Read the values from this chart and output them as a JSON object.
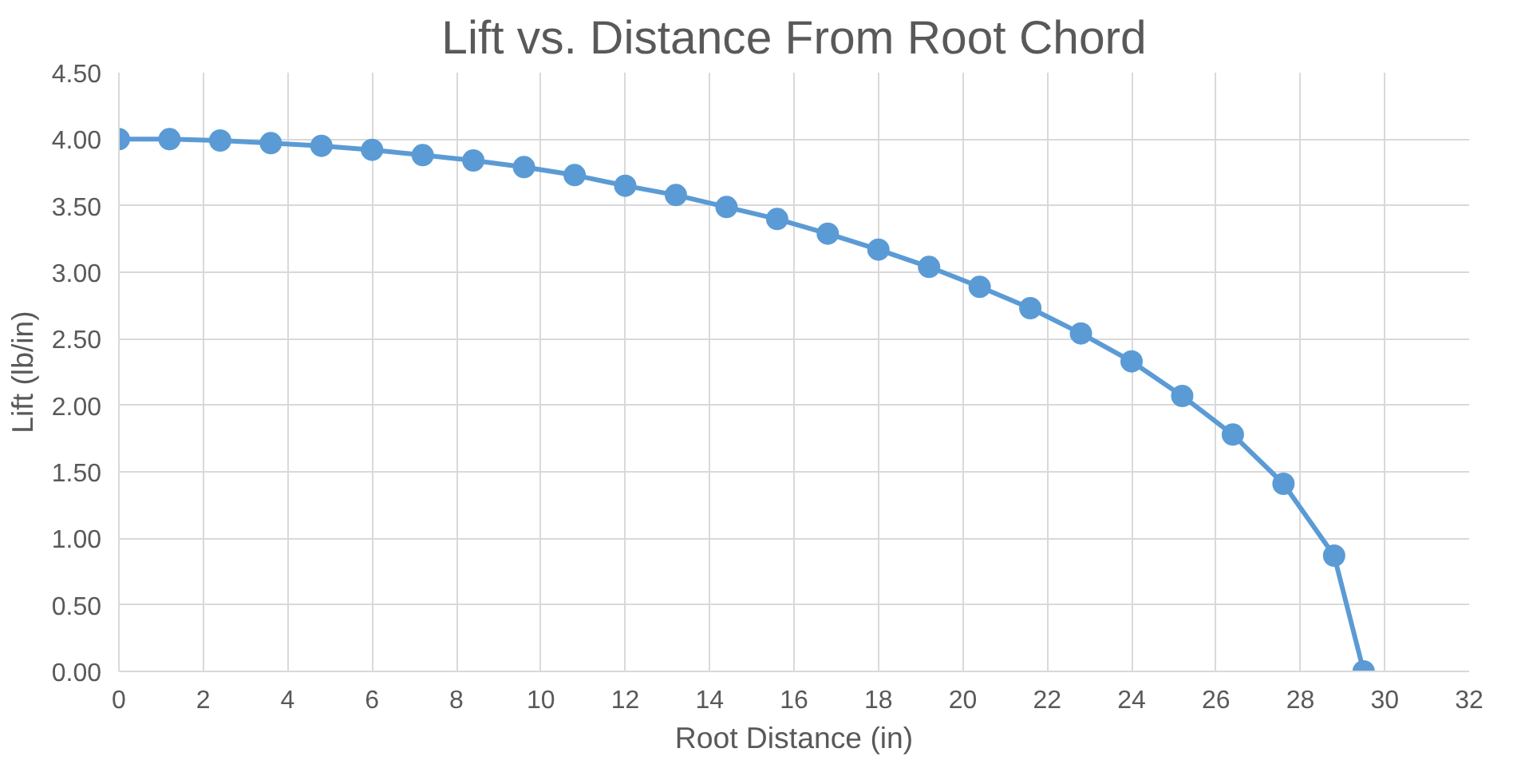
{
  "chart_data": {
    "type": "line",
    "title": "Lift vs. Distance From Root Chord",
    "xlabel": "Root Distance (in)",
    "ylabel": "Lift (lb/in)",
    "x": [
      0,
      1.2,
      2.4,
      3.6,
      4.8,
      6.0,
      7.2,
      8.4,
      9.6,
      10.8,
      12.0,
      13.2,
      14.4,
      15.6,
      16.8,
      18.0,
      19.2,
      20.4,
      21.6,
      22.8,
      24.0,
      25.2,
      26.4,
      27.6,
      28.8,
      29.5
    ],
    "series": [
      {
        "color": "#5b9bd5",
        "values": [
          4.0,
          4.0,
          3.99,
          3.97,
          3.95,
          3.92,
          3.88,
          3.84,
          3.79,
          3.73,
          3.65,
          3.58,
          3.49,
          3.4,
          3.29,
          3.17,
          3.04,
          2.89,
          2.73,
          2.54,
          2.33,
          2.07,
          1.78,
          1.41,
          0.87,
          0.0
        ]
      }
    ],
    "xlim": [
      0,
      32
    ],
    "xticks": [
      0,
      2,
      4,
      6,
      8,
      10,
      12,
      14,
      16,
      18,
      20,
      22,
      24,
      26,
      28,
      30,
      32
    ],
    "ylim": [
      0,
      4.5
    ],
    "yticks": [
      {
        "value": 0,
        "label": "0.00"
      },
      {
        "value": 0.5,
        "label": "0.50"
      },
      {
        "value": 1,
        "label": "1.00"
      },
      {
        "value": 1.5,
        "label": "1.50"
      },
      {
        "value": 2,
        "label": "2.00"
      },
      {
        "value": 2.5,
        "label": "2.50"
      },
      {
        "value": 3,
        "label": "3.00"
      },
      {
        "value": 3.5,
        "label": "3.50"
      },
      {
        "value": 4,
        "label": "4.00"
      },
      {
        "value": 4.5,
        "label": "4.50"
      }
    ],
    "grid": true,
    "marker": "circle",
    "line_style": "solid"
  }
}
